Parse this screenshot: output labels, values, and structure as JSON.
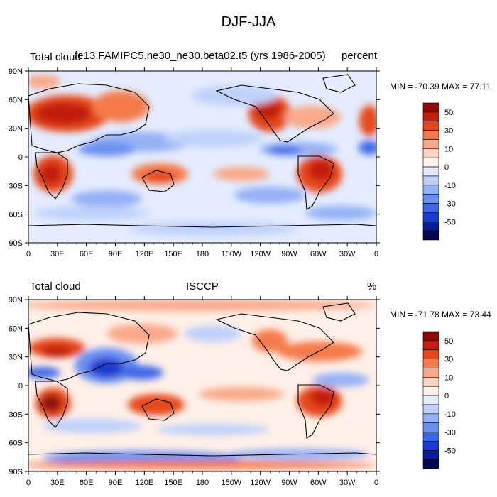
{
  "figure": {
    "title": "DJF-JJA"
  },
  "panels": [
    {
      "left_label": "Total cloud",
      "center_label": "fe13.FAMIPC5.ne30_ne30.beta02.t5 (yrs 1986-2005)",
      "right_label": "percent",
      "minmax": "MIN = -70.39 MAX =  77.11"
    },
    {
      "left_label": "Total cloud",
      "center_label": "ISCCP",
      "right_label": "%",
      "minmax": "MIN = -71.78 MAX =  73.44"
    }
  ],
  "axes": {
    "lat_ticks": [
      "90N",
      "60N",
      "30N",
      "0",
      "30S",
      "60S",
      "90S"
    ],
    "lon_ticks": [
      "0",
      "30E",
      "60E",
      "90E",
      "120E",
      "150E",
      "180",
      "150W",
      "120W",
      "90W",
      "60W",
      "30W",
      "0"
    ]
  },
  "colorbar": {
    "labels": [
      "50",
      "30",
      "10",
      "0",
      "-10",
      "-30",
      "-50"
    ],
    "colors": [
      "#8b0a0a",
      "#c21f0c",
      "#e5481a",
      "#f47a4b",
      "#f9a98a",
      "#fcd3bf",
      "#fff0e8",
      "#e4ecfd",
      "#bfd1fb",
      "#94b1f6",
      "#6a8ff0",
      "#3f68e8",
      "#1a3bd0",
      "#0a1b9a",
      "#03074f"
    ]
  }
}
